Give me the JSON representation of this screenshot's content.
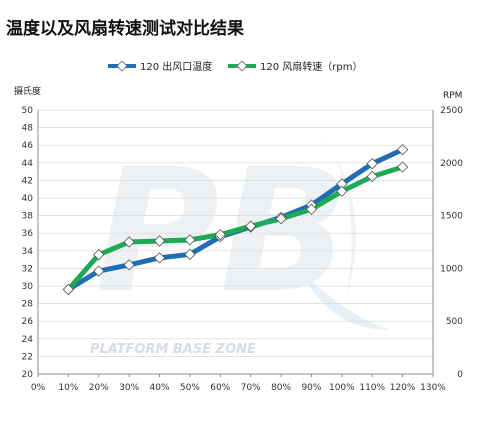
{
  "chart_data": {
    "type": "line",
    "title": "温度以及风扇转速测试对比结果",
    "ylabel": "摄氏度",
    "y2label": "RPM",
    "categories": [
      "0%",
      "10%",
      "20%",
      "30%",
      "40%",
      "50%",
      "60%",
      "70%",
      "80%",
      "90%",
      "100%",
      "110%",
      "120%",
      "130%"
    ],
    "ylim": [
      20,
      50
    ],
    "yticks": [
      20,
      22,
      24,
      26,
      28,
      30,
      32,
      34,
      36,
      38,
      40,
      42,
      44,
      46,
      48,
      50
    ],
    "y2lim": [
      0,
      2500
    ],
    "y2ticks": [
      0,
      500,
      1000,
      1500,
      2000,
      2500
    ],
    "grid": true,
    "legend_position": "top",
    "series": [
      {
        "name": "120 出风口温度",
        "axis": "left",
        "color": "#1e6db5",
        "x": [
          "10%",
          "20%",
          "30%",
          "40%",
          "50%",
          "60%",
          "70%",
          "80%",
          "90%",
          "100%",
          "110%",
          "120%"
        ],
        "values": [
          29.6,
          31.7,
          32.4,
          33.2,
          33.6,
          35.6,
          36.7,
          37.8,
          39.2,
          41.6,
          43.9,
          45.5
        ]
      },
      {
        "name": "120 风扇转速（rpm）",
        "axis": "right",
        "color": "#1aab54",
        "x": [
          "10%",
          "20%",
          "30%",
          "40%",
          "50%",
          "60%",
          "70%",
          "80%",
          "90%",
          "100%",
          "110%",
          "120%"
        ],
        "values": [
          800,
          1130,
          1250,
          1260,
          1270,
          1320,
          1400,
          1470,
          1560,
          1730,
          1870,
          1960
        ]
      }
    ],
    "watermark": {
      "logo": "PB",
      "text": "PLATFORM BASE ZONE"
    }
  }
}
